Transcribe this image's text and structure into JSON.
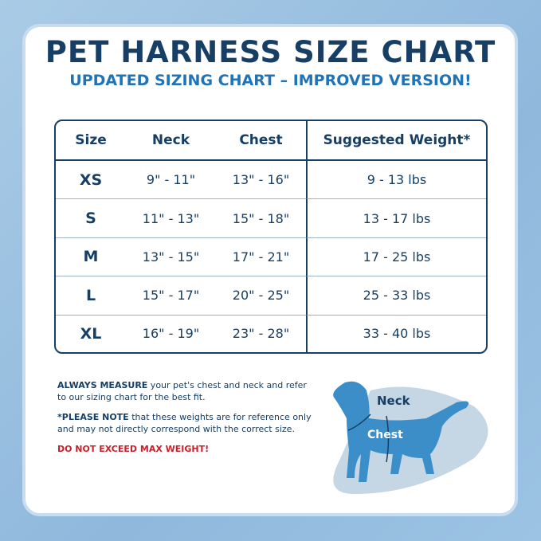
{
  "title": "PET HARNESS SIZE CHART",
  "subtitle": "UPDATED SIZING CHART – IMPROVED VERSION!",
  "table": {
    "headers": [
      "Size",
      "Neck",
      "Chest",
      "Suggested Weight*"
    ],
    "rows": [
      [
        "XS",
        "9\" - 11\"",
        "13\" - 16\"",
        "9 - 13 lbs"
      ],
      [
        "S",
        "11\" - 13\"",
        "15\" - 18\"",
        "13 - 17 lbs"
      ],
      [
        "M",
        "13\" - 15\"",
        "17\" - 21\"",
        "17 - 25  lbs"
      ],
      [
        "L",
        "15\" - 17\"",
        "20\" - 25\"",
        "25 - 33 lbs"
      ],
      [
        "XL",
        "16\" - 19\"",
        "23\" - 28\"",
        "33 - 40 lbs"
      ]
    ]
  },
  "notes": {
    "measure_bold": "ALWAYS MEASURE",
    "measure_text": " your pet's chest and neck and refer to our sizing chart for the best fit.",
    "note_bold": "*PLEASE NOTE",
    "note_text": " that these weights are for reference only and may not directly correspond with the correct size.",
    "warning": "DO NOT EXCEED MAX WEIGHT!"
  },
  "diagram": {
    "neck_label": "Neck",
    "chest_label": "Chest"
  },
  "colors": {
    "navy": "#173f66",
    "blue": "#1f73b7",
    "red": "#c8202a",
    "dog": "#3b8ec8"
  }
}
